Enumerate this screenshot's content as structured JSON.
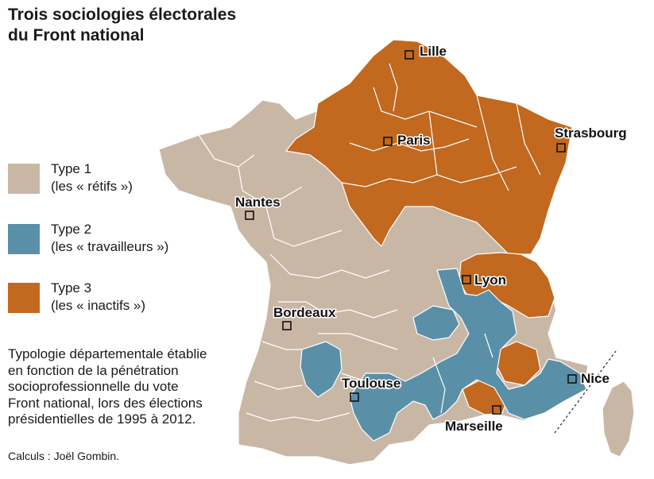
{
  "title_lines": [
    "Trois sociologies électorales",
    "du Front national"
  ],
  "legend": [
    {
      "label": "Type 1",
      "sublabel": "(les « rétifs »)",
      "color": "#c9b7a6"
    },
    {
      "label": "Type 2",
      "sublabel": "(les « travailleurs »)",
      "color": "#5a8fa8"
    },
    {
      "label": "Type 3",
      "sublabel": "(les « inactifs »)",
      "color": "#c2681f"
    }
  ],
  "description_lines": [
    "Typologie départementale établie",
    "en fonction de la pénétration",
    "socioprofessionnelle du vote",
    "Front national, lors des élections",
    "présidentielles de 1995 à 2012."
  ],
  "credit": "Calculs : Joël Gombin.",
  "cities": [
    "Lille",
    "Paris",
    "Strasbourg",
    "Nantes",
    "Lyon",
    "Bordeaux",
    "Toulouse",
    "Nice",
    "Marseille"
  ],
  "colors": {
    "type1": "#c9b7a6",
    "type2": "#5a8fa8",
    "type3": "#c2681f",
    "border": "#ffffff"
  }
}
